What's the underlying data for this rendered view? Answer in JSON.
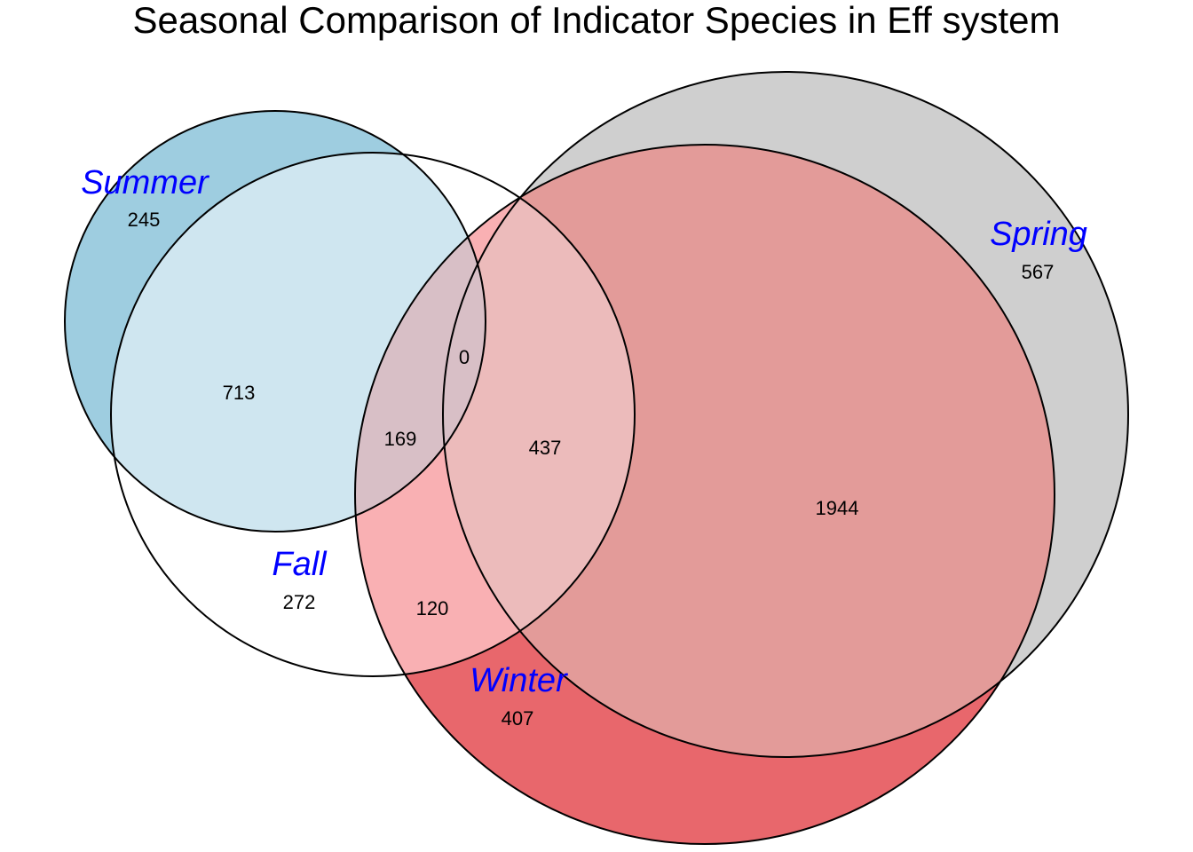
{
  "title": "Seasonal Comparison of Indicator Species in Eff system",
  "label_color": "#0000ff",
  "colors": {
    "summer_fill": "#9ecde0",
    "spring_fill": "#cfcfcf",
    "winter_fill": "#e8676c",
    "fall_summer_overlap": "#cfe6f0",
    "fall_winter_overlap": "#f9b0b3",
    "spring_winter_overlap": "#e39b99",
    "fall_spring_winter_overlap": "#ecbbbb",
    "summer_fall_winter_overlap": "#d8bfc6"
  },
  "sets": [
    {
      "key": "summer",
      "label": "Summer",
      "only_count": "245"
    },
    {
      "key": "fall",
      "label": "Fall",
      "only_count": "272"
    },
    {
      "key": "winter",
      "label": "Winter",
      "only_count": "407"
    },
    {
      "key": "spring",
      "label": "Spring",
      "only_count": "567"
    }
  ],
  "intersections": {
    "summer_fall": "713",
    "summer_fall_winter": "169",
    "summer_fall_winter_spring": "0",
    "fall_winter_spring": "437",
    "fall_winter": "120",
    "winter_spring": "1944"
  }
}
